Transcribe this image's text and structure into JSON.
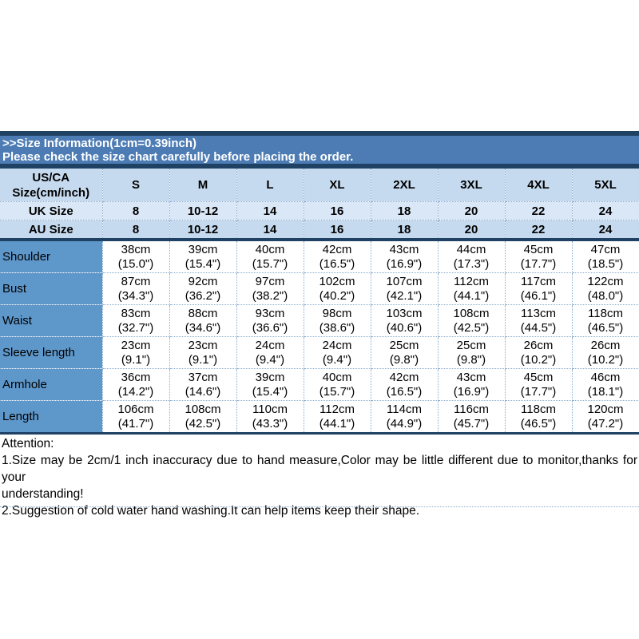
{
  "banner": {
    "line1": ">>Size Information(1cm=0.39inch)",
    "line2": "Please check the size chart carefully before placing the order."
  },
  "colors": {
    "dark_line": "#1e4164",
    "banner_bg": "#4d7cb4",
    "header_row_bg": "#c6daef",
    "uk_row_bg": "#dae7f6",
    "label_column_bg": "#5e97ca",
    "dotted_border": "#86a9cc"
  },
  "chart_data": {
    "type": "table",
    "title": "Size Information(1cm=0.39inch)",
    "corner_header": [
      "US/CA",
      "Size(cm/inch)"
    ],
    "size_headers": [
      "S",
      "M",
      "L",
      "XL",
      "2XL",
      "3XL",
      "4XL",
      "5XL"
    ],
    "uk_row": {
      "label": "UK Size",
      "values": [
        "8",
        "10-12",
        "14",
        "16",
        "18",
        "20",
        "22",
        "24"
      ]
    },
    "au_row": {
      "label": "AU Size",
      "values": [
        "8",
        "10-12",
        "14",
        "16",
        "18",
        "20",
        "22",
        "24"
      ]
    },
    "measurement_rows": [
      {
        "label": "Shoulder",
        "values": [
          [
            "38cm",
            "(15.0\")"
          ],
          [
            "39cm",
            "(15.4\")"
          ],
          [
            "40cm",
            "(15.7\")"
          ],
          [
            "42cm",
            "(16.5\")"
          ],
          [
            "43cm",
            "(16.9\")"
          ],
          [
            "44cm",
            "(17.3\")"
          ],
          [
            "45cm",
            "(17.7\")"
          ],
          [
            "47cm",
            "(18.5\")"
          ]
        ]
      },
      {
        "label": "Bust",
        "values": [
          [
            "87cm",
            "(34.3\")"
          ],
          [
            "92cm",
            "(36.2\")"
          ],
          [
            "97cm",
            "(38.2\")"
          ],
          [
            "102cm",
            "(40.2\")"
          ],
          [
            "107cm",
            "(42.1\")"
          ],
          [
            "112cm",
            "(44.1\")"
          ],
          [
            "117cm",
            "(46.1\")"
          ],
          [
            "122cm",
            "(48.0\")"
          ]
        ]
      },
      {
        "label": "Waist",
        "values": [
          [
            "83cm",
            "(32.7\")"
          ],
          [
            "88cm",
            "(34.6\")"
          ],
          [
            "93cm",
            "(36.6\")"
          ],
          [
            "98cm",
            "(38.6\")"
          ],
          [
            "103cm",
            "(40.6\")"
          ],
          [
            "108cm",
            "(42.5\")"
          ],
          [
            "113cm",
            "(44.5\")"
          ],
          [
            "118cm",
            "(46.5\")"
          ]
        ]
      },
      {
        "label": "Sleeve length",
        "values": [
          [
            "23cm",
            "(9.1\")"
          ],
          [
            "23cm",
            "(9.1\")"
          ],
          [
            "24cm",
            "(9.4\")"
          ],
          [
            "24cm",
            "(9.4\")"
          ],
          [
            "25cm",
            "(9.8\")"
          ],
          [
            "25cm",
            "(9.8\")"
          ],
          [
            "26cm",
            "(10.2\")"
          ],
          [
            "26cm",
            "(10.2\")"
          ]
        ]
      },
      {
        "label": "Armhole",
        "values": [
          [
            "36cm",
            "(14.2\")"
          ],
          [
            "37cm",
            "(14.6\")"
          ],
          [
            "39cm",
            "(15.4\")"
          ],
          [
            "40cm",
            "(15.7\")"
          ],
          [
            "42cm",
            "(16.5\")"
          ],
          [
            "43cm",
            "(16.9\")"
          ],
          [
            "45cm",
            "(17.7\")"
          ],
          [
            "46cm",
            "(18.1\")"
          ]
        ]
      },
      {
        "label": "Length",
        "values": [
          [
            "106cm",
            "(41.7\")"
          ],
          [
            "108cm",
            "(42.5\")"
          ],
          [
            "110cm",
            "(43.3\")"
          ],
          [
            "112cm",
            "(44.1\")"
          ],
          [
            "114cm",
            "(44.9\")"
          ],
          [
            "116cm",
            "(45.7\")"
          ],
          [
            "118cm",
            "(46.5\")"
          ],
          [
            "120cm",
            "(47.2\")"
          ]
        ]
      }
    ]
  },
  "attention": {
    "lines": [
      "Attention:",
      "1.Size may be 2cm/1 inch inaccuracy due to hand measure,Color may be little different due to monitor,thanks for your",
      "understanding!",
      "2.Suggestion of cold water hand washing.It can help items keep their shape."
    ]
  }
}
